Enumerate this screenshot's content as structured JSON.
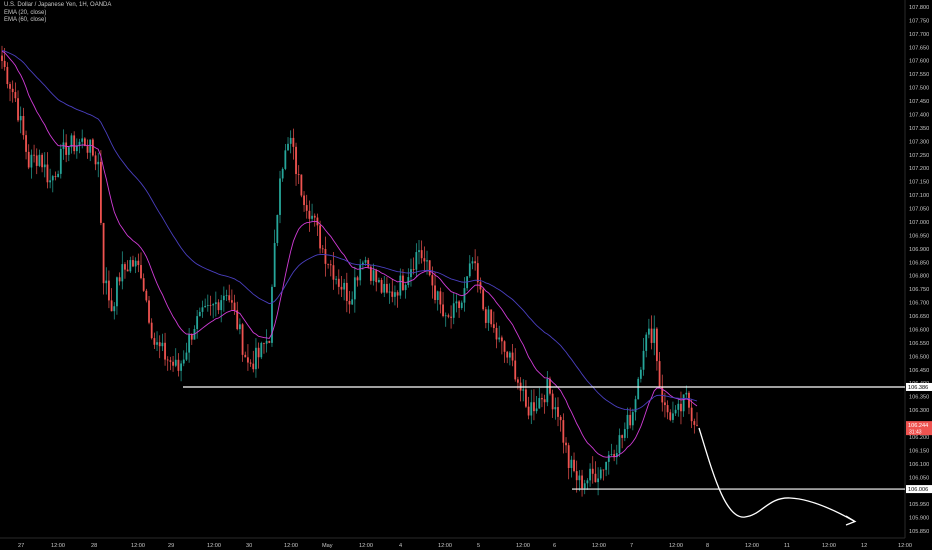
{
  "chart_data": {
    "type": "candlestick",
    "title": "U.S. Dollar / Japanese Yen, 1H, OANDA",
    "indicators": [
      {
        "name": "EMA (20, close)",
        "color": "#d03bd6"
      },
      {
        "name": "EMA (60, close)",
        "color": "#4a3fbf"
      }
    ],
    "ylim": [
      105.85,
      107.8
    ],
    "y_ticks": [
      "107.800",
      "107.750",
      "107.700",
      "107.650",
      "107.600",
      "107.550",
      "107.500",
      "107.450",
      "107.400",
      "107.350",
      "107.300",
      "107.250",
      "107.200",
      "107.150",
      "107.100",
      "107.050",
      "107.000",
      "106.950",
      "106.900",
      "106.850",
      "106.800",
      "106.750",
      "106.700",
      "106.650",
      "106.600",
      "106.550",
      "106.500",
      "106.450",
      "106.400",
      "106.350",
      "106.300",
      "106.250",
      "106.200",
      "106.150",
      "106.100",
      "106.050",
      "106.000",
      "105.950",
      "105.900",
      "105.850"
    ],
    "x_ticks": [
      "27",
      "12:00",
      "28",
      "12:00",
      "29",
      "12:00",
      "30",
      "12:00",
      "May",
      "12:00",
      "4",
      "12:00",
      "5",
      "12:00",
      "6",
      "12:00",
      "7",
      "12:00",
      "8",
      "12:00",
      "11",
      "12:00",
      "12",
      "12:00"
    ],
    "horizontal_levels": [
      {
        "value": 106.386,
        "label": "106.386"
      },
      {
        "value": 106.006,
        "label": "106.006"
      }
    ],
    "price_label": {
      "value": 106.244,
      "label": "106.244",
      "sub": "31:43"
    },
    "annotation": "projected path arrow",
    "key_prices": [
      {
        "t": 0,
        "p": 107.6
      },
      {
        "t": 5,
        "p": 107.46
      },
      {
        "t": 10,
        "p": 107.22
      },
      {
        "t": 14,
        "p": 107.25
      },
      {
        "t": 18,
        "p": 107.15
      },
      {
        "t": 24,
        "p": 107.28
      },
      {
        "t": 31,
        "p": 107.3
      },
      {
        "t": 36,
        "p": 107.22
      },
      {
        "t": 38,
        "p": 106.8
      },
      {
        "t": 41,
        "p": 106.68
      },
      {
        "t": 44,
        "p": 106.8
      },
      {
        "t": 48,
        "p": 106.85
      },
      {
        "t": 52,
        "p": 106.82
      },
      {
        "t": 57,
        "p": 106.55
      },
      {
        "t": 62,
        "p": 106.49
      },
      {
        "t": 66,
        "p": 106.45
      },
      {
        "t": 72,
        "p": 106.62
      },
      {
        "t": 78,
        "p": 106.67
      },
      {
        "t": 84,
        "p": 106.75
      },
      {
        "t": 88,
        "p": 106.62
      },
      {
        "t": 92,
        "p": 106.47
      },
      {
        "t": 96,
        "p": 106.5
      },
      {
        "t": 100,
        "p": 106.58
      },
      {
        "t": 104,
        "p": 107.2
      },
      {
        "t": 108,
        "p": 107.3
      },
      {
        "t": 111,
        "p": 107.15
      },
      {
        "t": 115,
        "p": 107.05
      },
      {
        "t": 120,
        "p": 106.9
      },
      {
        "t": 126,
        "p": 106.78
      },
      {
        "t": 130,
        "p": 106.72
      },
      {
        "t": 135,
        "p": 106.88
      },
      {
        "t": 140,
        "p": 106.78
      },
      {
        "t": 144,
        "p": 106.72
      },
      {
        "t": 150,
        "p": 106.78
      },
      {
        "t": 156,
        "p": 106.9
      },
      {
        "t": 160,
        "p": 106.8
      },
      {
        "t": 166,
        "p": 106.62
      },
      {
        "t": 172,
        "p": 106.7
      },
      {
        "t": 176,
        "p": 106.85
      },
      {
        "t": 180,
        "p": 106.68
      },
      {
        "t": 186,
        "p": 106.55
      },
      {
        "t": 192,
        "p": 106.45
      },
      {
        "t": 196,
        "p": 106.3
      },
      {
        "t": 200,
        "p": 106.33
      },
      {
        "t": 204,
        "p": 106.38
      },
      {
        "t": 208,
        "p": 106.3
      },
      {
        "t": 212,
        "p": 106.1
      },
      {
        "t": 216,
        "p": 106.03
      },
      {
        "t": 220,
        "p": 106.05
      },
      {
        "t": 224,
        "p": 106.08
      },
      {
        "t": 228,
        "p": 106.15
      },
      {
        "t": 232,
        "p": 106.2
      },
      {
        "t": 236,
        "p": 106.3
      },
      {
        "t": 240,
        "p": 106.55
      },
      {
        "t": 244,
        "p": 106.6
      },
      {
        "t": 246,
        "p": 106.4
      },
      {
        "t": 248,
        "p": 106.3
      },
      {
        "t": 252,
        "p": 106.27
      },
      {
        "t": 256,
        "p": 106.34
      },
      {
        "t": 260,
        "p": 106.244
      }
    ]
  }
}
